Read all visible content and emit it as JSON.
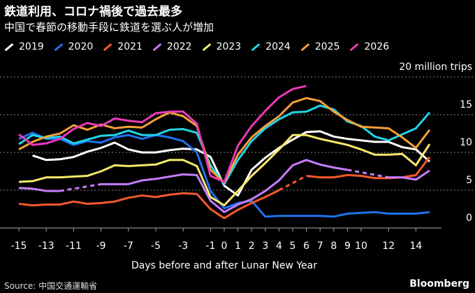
{
  "title": "鉄道利用、コロナ禍後で過去最多",
  "subtitle": "中国で春節の移動手段に鉄道を選ぶ人が増加",
  "source": "Source: 中国交通運輸省",
  "logo": "Bloomberg",
  "chart_data": {
    "type": "line",
    "xlabel": "Days before and after Lunar New Year",
    "ylabel": "20 million trips",
    "x": [
      -15,
      -14,
      -13,
      -12,
      -11,
      -10,
      -9,
      -8,
      -7,
      -6,
      -5,
      -4,
      -3,
      -2,
      -1,
      0,
      1,
      2,
      3,
      4,
      5,
      6,
      7,
      8,
      9,
      10,
      11,
      12,
      13,
      14,
      15
    ],
    "x_ticks": [
      "-15",
      "-13",
      "-11",
      "-9",
      "-7",
      "-5",
      "-3",
      "-1",
      "0",
      "1",
      "2",
      "3",
      "4",
      "5",
      "6",
      "7",
      "8",
      "9",
      "10",
      "12",
      "14"
    ],
    "x_tick_values": [
      -15,
      -13,
      -11,
      -9,
      -7,
      -5,
      -3,
      -1,
      0,
      1,
      2,
      3,
      4,
      5,
      6,
      7,
      8,
      9,
      10,
      12,
      14
    ],
    "y_ticks": [
      "0",
      "5",
      "10",
      "15"
    ],
    "y_tick_values": [
      0,
      5,
      10,
      15,
      20
    ],
    "ylim": [
      0,
      20
    ],
    "grid": true,
    "y_axis_side": "right",
    "legend": "top",
    "series": [
      {
        "name": "2019",
        "color": "#ffffff",
        "values": [
          null,
          9.6,
          9.0,
          9.1,
          9.4,
          10.1,
          10.6,
          11.3,
          10.4,
          10.0,
          10.0,
          10.3,
          10.5,
          10.4,
          9.4,
          5.6,
          4.3,
          7.7,
          9.3,
          10.6,
          11.7,
          12.7,
          12.8,
          12.1,
          11.8,
          11.6,
          11.4,
          11.4,
          10.7,
          10.4,
          8.8
        ]
      },
      {
        "name": "2020",
        "color": "#1f72f0",
        "values": [
          11.8,
          12.6,
          11.8,
          11.8,
          11.0,
          11.5,
          11.3,
          12.0,
          12.3,
          11.8,
          12.3,
          12.0,
          11.5,
          10.0,
          4.9,
          2.6,
          3.3,
          3.6,
          1.5,
          1.6,
          1.6,
          1.6,
          1.6,
          1.5,
          1.9,
          2.0,
          2.1,
          1.9,
          1.9,
          1.9,
          2.1
        ]
      },
      {
        "name": "2021",
        "color": "#f25a2a",
        "values": [
          3.2,
          3.0,
          3.1,
          3.1,
          3.5,
          3.2,
          3.3,
          3.5,
          4.0,
          4.3,
          4.1,
          4.4,
          4.6,
          4.5,
          2.5,
          1.3,
          2.4,
          3.3,
          4.1,
          5.0,
          null,
          6.9,
          6.7,
          6.7,
          7.0,
          6.9,
          6.6,
          6.6,
          6.7,
          7.0,
          9.4
        ]
      },
      {
        "name": "2022",
        "color": "#c77dff",
        "values": [
          5.3,
          5.2,
          4.9,
          4.9,
          null,
          null,
          5.8,
          5.8,
          5.8,
          6.3,
          6.5,
          6.8,
          7.1,
          7.0,
          3.6,
          2.1,
          3.1,
          3.8,
          4.9,
          6.3,
          8.3,
          9.0,
          8.4,
          8.0,
          7.7,
          null,
          null,
          6.7,
          6.7,
          6.4,
          7.6
        ]
      },
      {
        "name": "2023",
        "color": "#f7e96b",
        "values": [
          6.1,
          6.2,
          6.7,
          6.7,
          6.8,
          6.9,
          7.5,
          8.3,
          8.2,
          8.3,
          8.4,
          9.0,
          9.0,
          8.2,
          4.1,
          3.0,
          4.9,
          6.9,
          8.6,
          10.4,
          12.3,
          12.3,
          11.8,
          11.4,
          11.0,
          10.4,
          9.7,
          9.7,
          9.8,
          8.3,
          11.1
        ]
      },
      {
        "name": "2024",
        "color": "#21d4e8",
        "values": [
          11.1,
          12.3,
          11.9,
          12.1,
          11.2,
          11.7,
          12.2,
          12.3,
          12.9,
          12.3,
          12.3,
          13.0,
          13.1,
          12.6,
          8.3,
          5.8,
          9.0,
          11.5,
          13.2,
          14.4,
          15.3,
          15.4,
          16.2,
          15.7,
          14.1,
          13.5,
          12.1,
          11.6,
          12.4,
          13.2,
          15.3
        ]
      },
      {
        "name": "2025",
        "color": "#f5a03a",
        "values": [
          10.4,
          11.4,
          12.1,
          12.5,
          13.6,
          13.0,
          13.7,
          13.2,
          13.4,
          13.3,
          14.4,
          15.3,
          14.8,
          13.5,
          7.7,
          6.0,
          9.7,
          12.0,
          13.5,
          14.8,
          16.6,
          17.2,
          16.8,
          15.4,
          14.3,
          13.4,
          13.3,
          13.2,
          12.0,
          10.6,
          13.0
        ]
      },
      {
        "name": "2026",
        "color": "#e83ab8",
        "values": [
          12.4,
          11.0,
          11.2,
          11.8,
          13.1,
          13.9,
          13.5,
          14.5,
          14.2,
          14.0,
          15.2,
          15.4,
          15.4,
          13.8,
          6.9,
          6.1,
          10.9,
          13.5,
          15.5,
          17.3,
          18.4,
          18.8,
          null,
          null,
          null,
          null,
          null,
          null,
          null,
          null,
          null
        ]
      }
    ]
  }
}
